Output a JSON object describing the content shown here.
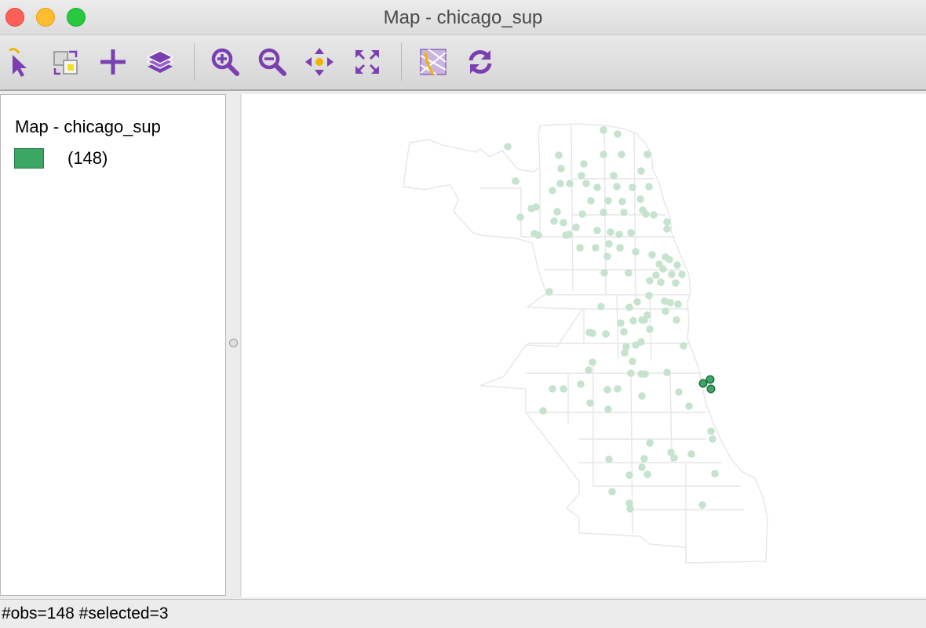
{
  "window": {
    "title": "Map - chicago_sup"
  },
  "toolbar": {
    "tools": [
      {
        "name": "select-tool",
        "icon": "pointer-icon"
      },
      {
        "name": "selection-mode-tool",
        "icon": "selection-shapes-icon"
      },
      {
        "name": "add-layer-tool",
        "icon": "plus-icon"
      },
      {
        "name": "layers-tool",
        "icon": "layers-icon"
      },
      {
        "name": "zoom-in-tool",
        "icon": "zoom-in-icon"
      },
      {
        "name": "zoom-out-tool",
        "icon": "zoom-out-icon"
      },
      {
        "name": "pan-tool",
        "icon": "pan-arrows-icon"
      },
      {
        "name": "full-extent-tool",
        "icon": "full-extent-icon"
      },
      {
        "name": "basemap-tool",
        "icon": "basemap-icon"
      },
      {
        "name": "refresh-tool",
        "icon": "refresh-icon"
      }
    ]
  },
  "legend": {
    "title": "Map - chicago_sup",
    "category": {
      "label": "(148)",
      "color": "#3aa864"
    }
  },
  "map": {
    "point_color": "#3aa864",
    "unselected_color": "#c5e3cd",
    "boundary_color": "#e6e6e6"
  },
  "status": {
    "text": "#obs=148 #selected=3"
  }
}
